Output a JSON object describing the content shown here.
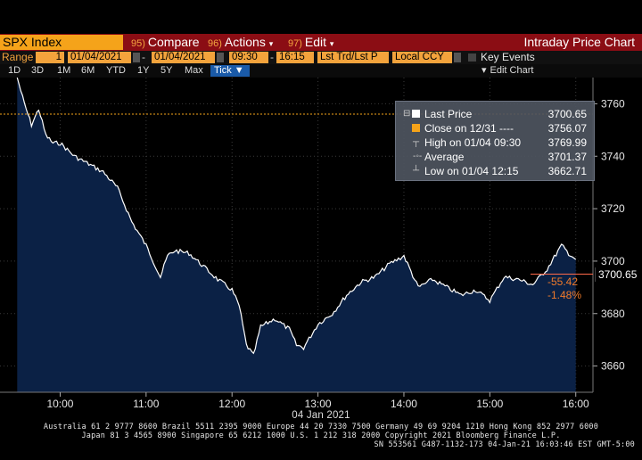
{
  "toolbar": {
    "ticker": "SPX Index",
    "compare_num": "95)",
    "compare_label": "Compare",
    "actions_num": "96)",
    "actions_label": "Actions",
    "edit_num": "97)",
    "edit_label": "Edit",
    "title": "Intraday Price Chart"
  },
  "settings": {
    "range_label": "Range",
    "range_value": "1",
    "start_date": "01/04/2021",
    "end_date": "01/04/2021",
    "start_time": "09:30",
    "end_time": "16:15",
    "market": "Lst Trd/Lst P",
    "currency": "Local CCY",
    "key_events": "Key Events"
  },
  "ranges": [
    "1D",
    "3D",
    "1M",
    "6M",
    "YTD",
    "1Y",
    "5Y",
    "Max"
  ],
  "tick_button": "Tick ▼",
  "edit_chart": "Edit Chart",
  "legend": {
    "last_price_label": "Last Price",
    "last_price_value": "3700.65",
    "close_label": "Close on 12/31 ----",
    "close_value": "3756.07",
    "high_label": "High on 01/04 09:30",
    "high_value": "3769.99",
    "avg_label": "Average",
    "avg_value": "3701.37",
    "low_label": "Low on 01/04 12:15",
    "low_value": "3662.71"
  },
  "change": {
    "points": "-55.42",
    "percent": "-1.48%"
  },
  "current_label": "3700.65",
  "date_label": "04 Jan 2021",
  "footer": {
    "line1": "Australia 61 2 9777 8600 Brazil 5511 2395 9000 Europe 44 20 7330 7500 Germany 49 69 9204 1210 Hong Kong 852 2977 6000",
    "line2": "Japan 81 3 4565 8900       Singapore 65 6212 1000       U.S. 1 212 318 2000             Copyright 2021 Bloomberg Finance L.P.",
    "line3": "SN 553561 G487-1132-173 04-Jan-21 16:03:46 EST  GMT-5:00"
  },
  "colors": {
    "accent": "#f5a31a",
    "menu_bar": "#8b0d14",
    "area_fill": "#0b2145",
    "line": "#ffffff",
    "close_line": "#f5a31a",
    "change": "#f07a2a"
  },
  "chart_data": {
    "type": "area",
    "x_ticks": [
      "10:00",
      "11:00",
      "12:00",
      "13:00",
      "14:00",
      "15:00",
      "16:00"
    ],
    "y_ticks": [
      3660,
      3680,
      3700,
      3720,
      3740,
      3760
    ],
    "ylim": [
      3650,
      3770
    ],
    "prev_close": 3756.07,
    "series": [
      {
        "x": [
          "09:30",
          "09:35",
          "09:40",
          "09:45",
          "09:50",
          "09:55",
          "10:00",
          "10:10",
          "10:20",
          "10:30",
          "10:40",
          "10:50",
          "11:00",
          "11:05",
          "11:10",
          "11:15",
          "11:20",
          "11:30",
          "11:40",
          "11:50",
          "12:00",
          "12:05",
          "12:10",
          "12:15",
          "12:20",
          "12:30",
          "12:40",
          "12:45",
          "12:50",
          "13:00",
          "13:10",
          "13:20",
          "13:30",
          "13:40",
          "13:50",
          "14:00",
          "14:10",
          "14:20",
          "14:30",
          "14:40",
          "14:50",
          "15:00",
          "15:10",
          "15:20",
          "15:30",
          "15:40",
          "15:50",
          "15:55",
          "16:00"
        ],
        "values": [
          3769.99,
          3760,
          3752,
          3758,
          3748,
          3745,
          3745,
          3740,
          3737,
          3734,
          3728,
          3715,
          3706,
          3700,
          3694,
          3702,
          3704,
          3703,
          3698,
          3693,
          3689,
          3683,
          3668,
          3664,
          3675,
          3678,
          3674,
          3668,
          3667,
          3676,
          3680,
          3687,
          3692,
          3694,
          3699,
          3702,
          3690,
          3693,
          3690,
          3687,
          3689,
          3685,
          3694,
          3693,
          3691,
          3697,
          3706,
          3703,
          3700.65
        ]
      }
    ]
  }
}
